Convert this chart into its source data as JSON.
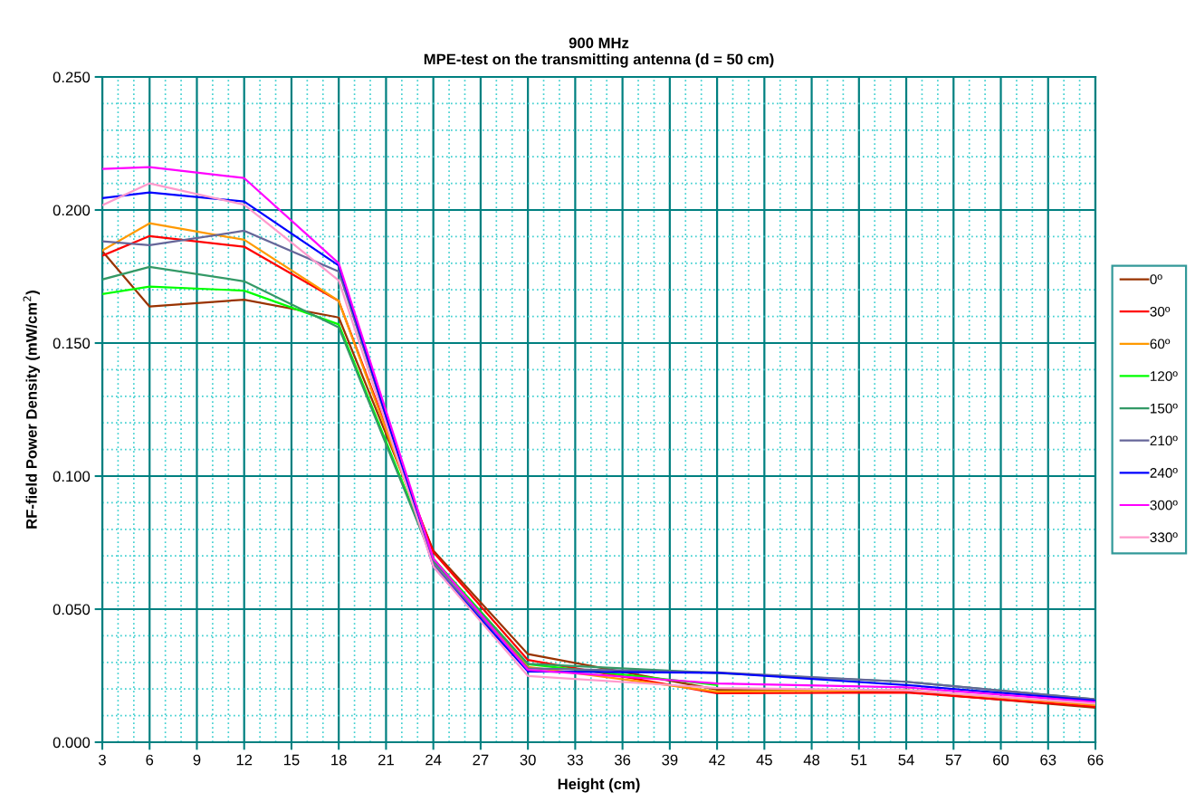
{
  "chart_data": {
    "type": "line",
    "title": "900 MHz\nMPE-test on the transmitting antenna (d = 50 cm)",
    "xlabel": "Height (cm)",
    "ylabel": "RF-field Power Density (mW/cm$^{2}$)",
    "x": [
      3,
      6,
      12,
      18,
      24,
      30,
      42,
      54,
      66
    ],
    "series": [
      {
        "name": "0º",
        "color": "#993300",
        "values": [
          0.1845,
          0.1637,
          0.1663,
          0.1596,
          0.072,
          0.0331,
          0.0198,
          0.019,
          0.013
        ]
      },
      {
        "name": "30º",
        "color": "#ff0000",
        "values": [
          0.1828,
          0.1902,
          0.1862,
          0.1658,
          0.0714,
          0.0309,
          0.0184,
          0.0187,
          0.0134
        ]
      },
      {
        "name": "60º",
        "color": "#ff9900",
        "values": [
          0.1848,
          0.195,
          0.1888,
          0.1658,
          0.069,
          0.0283,
          0.019,
          0.0196,
          0.014
        ]
      },
      {
        "name": "120º",
        "color": "#00ff00",
        "values": [
          0.1684,
          0.1712,
          0.1697,
          0.157,
          0.069,
          0.0293,
          0.0215,
          null,
          null
        ]
      },
      {
        "name": "150º",
        "color": "#339966",
        "values": [
          0.1739,
          0.1786,
          0.1732,
          0.1559,
          0.068,
          0.0295,
          0.026,
          0.0227,
          0.0161
        ]
      },
      {
        "name": "210º",
        "color": "#666699",
        "values": [
          0.1882,
          0.1868,
          0.1922,
          0.1769,
          0.067,
          0.0278,
          0.0262,
          0.0227,
          0.0161
        ]
      },
      {
        "name": "240º",
        "color": "#0000ff",
        "values": [
          0.2045,
          0.2066,
          0.2032,
          0.1791,
          0.066,
          0.0266,
          0.0261,
          0.0215,
          0.0156
        ]
      },
      {
        "name": "300º",
        "color": "#ff00ff",
        "values": [
          0.2154,
          0.2161,
          0.212,
          0.18,
          0.069,
          0.0272,
          0.0221,
          0.0206,
          0.0151
        ]
      },
      {
        "name": "330º",
        "color": "#ff99cc",
        "values": [
          0.2018,
          0.21,
          0.202,
          0.1735,
          0.066,
          0.0249,
          0.0204,
          0.0195,
          0.0145
        ]
      }
    ],
    "xlim": [
      3,
      66
    ],
    "xticks": [
      3,
      {
        "value": 4,
        "label": null
      },
      {
        "value": 5,
        "label": null
      },
      6,
      {
        "value": 7,
        "label": null
      },
      {
        "value": 8,
        "label": null
      },
      9,
      {
        "value": 10,
        "label": null
      },
      {
        "value": 11,
        "label": null
      },
      12,
      {
        "value": 13,
        "label": null
      },
      {
        "value": 14,
        "label": null
      },
      15,
      {
        "value": 16,
        "label": null
      },
      {
        "value": 17,
        "label": null
      },
      18,
      {
        "value": 19,
        "label": null
      },
      {
        "value": 20,
        "label": null
      },
      21,
      {
        "value": 22,
        "label": null
      },
      {
        "value": 23,
        "label": null
      },
      24,
      {
        "value": 25,
        "label": null
      },
      {
        "value": 26,
        "label": null
      },
      27,
      {
        "value": 28,
        "label": null
      },
      {
        "value": 29,
        "label": null
      },
      30,
      {
        "value": 31,
        "label": null
      },
      {
        "value": 32,
        "label": null
      },
      33,
      {
        "value": 34,
        "label": null
      },
      {
        "value": 35,
        "label": null
      },
      36,
      {
        "value": 37,
        "label": null
      },
      {
        "value": 38,
        "label": null
      },
      39,
      {
        "value": 40,
        "label": null
      },
      {
        "value": 41,
        "label": null
      },
      42,
      {
        "value": 43,
        "label": null
      },
      {
        "value": 44,
        "label": null
      },
      45,
      {
        "value": 46,
        "label": null
      },
      {
        "value": 47,
        "label": null
      },
      48,
      {
        "value": 49,
        "label": null
      },
      {
        "value": 50,
        "label": null
      },
      51,
      {
        "value": 52,
        "label": null
      },
      {
        "value": 53,
        "label": null
      },
      54,
      {
        "value": 55,
        "label": null
      },
      {
        "value": 56,
        "label": null
      },
      57,
      {
        "value": 58,
        "label": null
      },
      {
        "value": 59,
        "label": null
      },
      60,
      {
        "value": 61,
        "label": null
      },
      {
        "value": 62,
        "label": null
      },
      63,
      {
        "value": 64,
        "label": null
      },
      {
        "value": 65,
        "label": null
      },
      66
    ],
    "ylim": [
      0,
      0.25
    ],
    "yticks": [
      {
        "value": 0,
        "label": "0.000"
      },
      {
        "value": 0.01,
        "label": null
      },
      {
        "value": 0.02,
        "label": null
      },
      {
        "value": 0.03,
        "label": null
      },
      {
        "value": 0.04,
        "label": null
      },
      {
        "value": 0.05,
        "label": "0.050"
      },
      {
        "value": 0.06,
        "label": null
      },
      {
        "value": 0.07,
        "label": null
      },
      {
        "value": 0.08,
        "label": null
      },
      {
        "value": 0.09,
        "label": null
      },
      {
        "value": 0.1,
        "label": "0.100"
      },
      {
        "value": 0.11,
        "label": null
      },
      {
        "value": 0.12,
        "label": null
      },
      {
        "value": 0.13,
        "label": null
      },
      {
        "value": 0.14,
        "label": null
      },
      {
        "value": 0.15,
        "label": "0.150"
      },
      {
        "value": 0.16,
        "label": null
      },
      {
        "value": 0.17,
        "label": null
      },
      {
        "value": 0.18,
        "label": null
      },
      {
        "value": 0.19,
        "label": null
      },
      {
        "value": 0.2,
        "label": "0.200"
      },
      {
        "value": 0.21,
        "label": null
      },
      {
        "value": 0.22,
        "label": null
      },
      {
        "value": 0.23,
        "label": null
      },
      {
        "value": 0.24,
        "label": null
      },
      {
        "value": 0.25,
        "label": "0.250"
      }
    ],
    "grid": true,
    "legend": "right",
    "marker": "none",
    "line_style": "solid"
  }
}
